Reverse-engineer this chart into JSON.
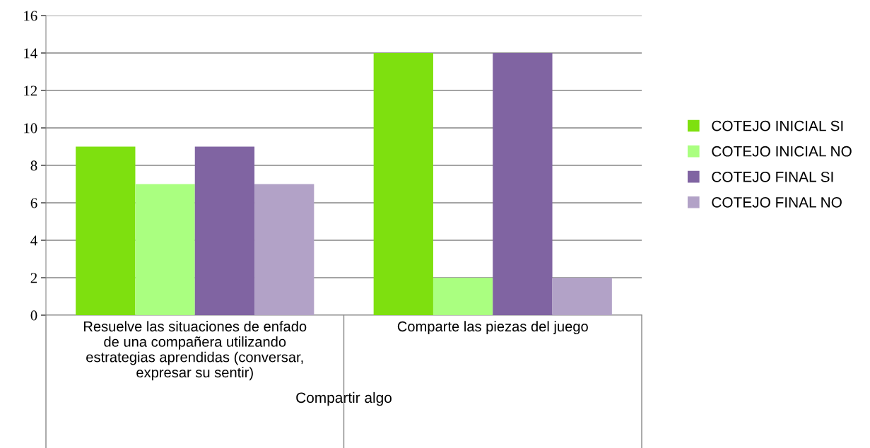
{
  "chart_data": {
    "type": "bar",
    "xlabel": "Compartir algo",
    "categories": [
      "Resuelve las situaciones de enfado\nde una compañera utilizando\nestrategias aprendidas (conversar,\nexpresar su sentir)",
      "Comparte las piezas del juego"
    ],
    "series": [
      {
        "name": "COTEJO INICIAL SI",
        "color": "#7ee00f",
        "values": [
          9,
          14
        ]
      },
      {
        "name": "COTEJO INICIAL NO",
        "color": "#aaff80",
        "values": [
          7,
          2
        ]
      },
      {
        "name": "COTEJO FINAL SI",
        "color": "#8064a2",
        "values": [
          9,
          14
        ]
      },
      {
        "name": "COTEJO FINAL NO",
        "color": "#b2a2c7",
        "values": [
          7,
          2
        ]
      }
    ],
    "ylim": [
      0,
      16
    ],
    "yticks": [
      0,
      2,
      4,
      6,
      8,
      10,
      12,
      14,
      16
    ],
    "grid": "y",
    "legend": "right"
  }
}
